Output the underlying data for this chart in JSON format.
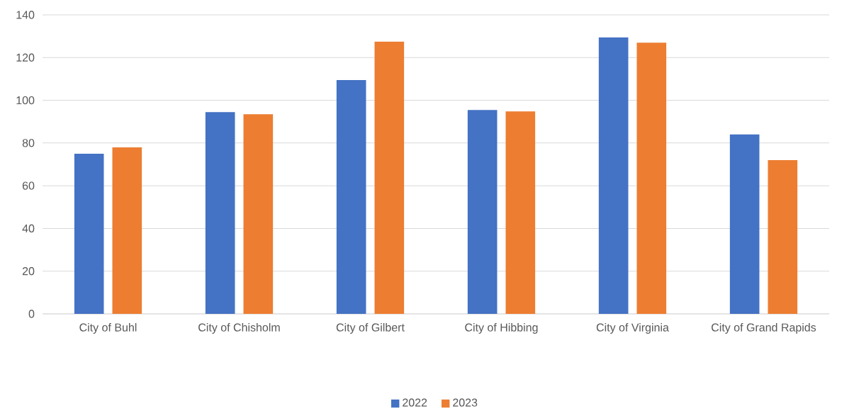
{
  "chart_data": {
    "type": "bar",
    "categories": [
      "City of Buhl",
      "City of Chisholm",
      "City of Gilbert",
      "City of Hibbing",
      "City of Virginia",
      "City of Grand Rapids"
    ],
    "series": [
      {
        "name": "2022",
        "color": "#4472c4",
        "values": [
          75,
          94.5,
          109.5,
          95.5,
          129.5,
          84
        ]
      },
      {
        "name": "2023",
        "color": "#ed7d31",
        "values": [
          78,
          93.5,
          127.5,
          94.8,
          127,
          72
        ]
      }
    ],
    "ylim": [
      0,
      140
    ],
    "yticks": [
      0,
      20,
      40,
      60,
      80,
      100,
      120,
      140
    ],
    "grid": "y",
    "legend": "bottom"
  }
}
